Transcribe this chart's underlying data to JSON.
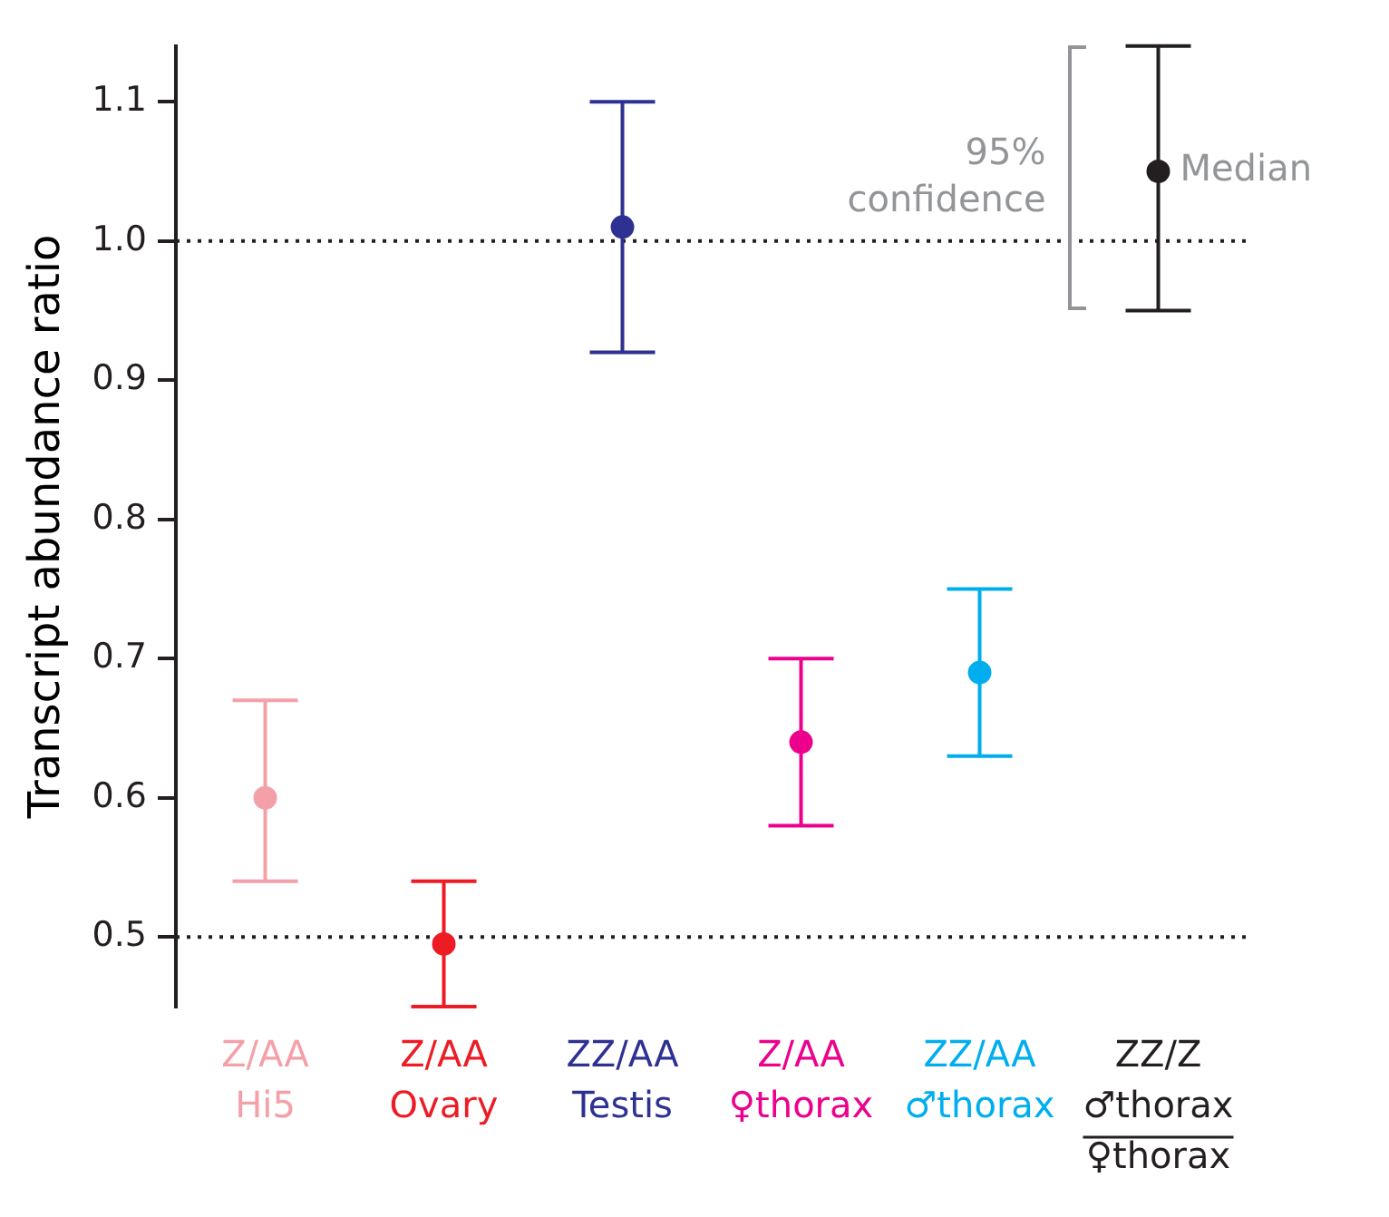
{
  "chart_data": {
    "type": "scatter",
    "ylabel": "Transcript abundance ratio",
    "categories": [
      "Z/AA\nHi5",
      "Z/AA\nOvary",
      "ZZ/AA\nTestis",
      "Z/AA\n♀thorax",
      "ZZ/AA\n♂thorax",
      "ZZ/Z\n♂thorax\n♀thorax"
    ],
    "values": [
      0.6,
      0.495,
      1.01,
      0.64,
      0.69,
      1.05
    ],
    "errors": [
      [
        0.54,
        0.67
      ],
      [
        0.45,
        0.54
      ],
      [
        0.92,
        1.1
      ],
      [
        0.58,
        0.7
      ],
      [
        0.63,
        0.75
      ],
      [
        0.95,
        1.14
      ]
    ],
    "colors": [
      "#f4a0a8",
      "#ed1c24",
      "#2e3192",
      "#ec008c",
      "#00aeef",
      "#231f20"
    ],
    "marker": "circle",
    "ylim": [
      0.45,
      1.14
    ],
    "yticks": [
      0.5,
      0.6,
      0.7,
      0.8,
      0.9,
      {
        "value": 1,
        "label": "1.0"
      },
      1.1
    ],
    "ref_lines": [
      {
        "axis": "y",
        "value": 0.5,
        "line_style": "dotted",
        "color": "#231f20"
      },
      {
        "axis": "y",
        "value": 1,
        "line_style": "dotted",
        "color": "#231f20"
      }
    ],
    "annotations": [
      "95% confidence",
      "Median"
    ]
  }
}
